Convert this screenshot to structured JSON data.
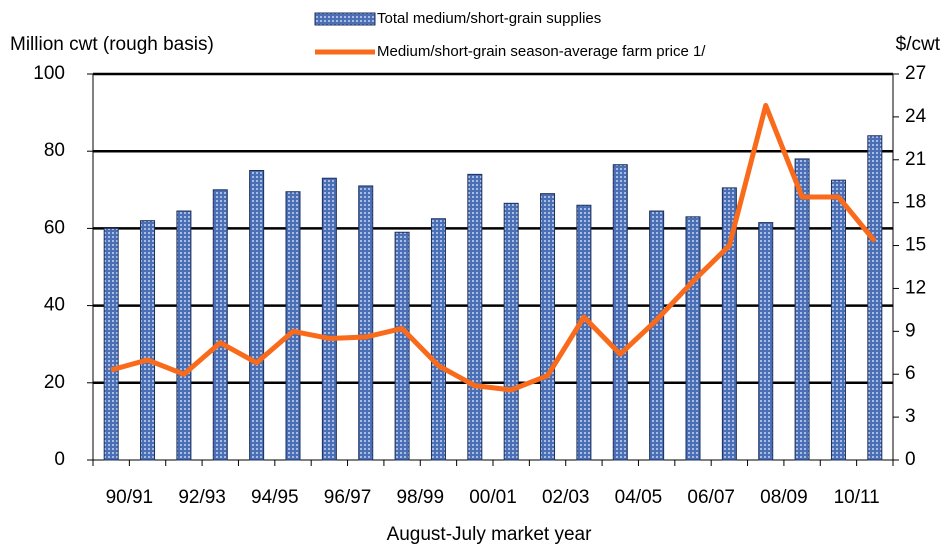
{
  "chart_data": {
    "type": "bar",
    "y_axis_label": "Million cwt (rough basis)",
    "y2_axis_label": "$/cwt",
    "x_axis_label": "August-July market year",
    "categories": [
      "90/91",
      null,
      "92/93",
      null,
      "94/95",
      null,
      "96/97",
      null,
      "98/99",
      null,
      "00/01",
      null,
      "02/03",
      null,
      "04/05",
      null,
      "06/07",
      null,
      "08/09",
      null,
      "10/11",
      null
    ],
    "series": [
      {
        "name": "Total medium/short-grain supplies",
        "type": "bar",
        "color": "#4a6fb5",
        "values": [
          60,
          62,
          64.5,
          70,
          75,
          69.5,
          73,
          71,
          59,
          62.5,
          74,
          66.5,
          69,
          66,
          76.5,
          64.5,
          63,
          70.5,
          61.5,
          78,
          72.5,
          84
        ]
      },
      {
        "name": "Medium/short-grain season-average farm price 1/",
        "type": "line",
        "axis": "y2",
        "color": "#f96a1b",
        "values": [
          6.3,
          7.0,
          6.0,
          8.2,
          6.8,
          9.0,
          8.5,
          8.6,
          9.2,
          6.6,
          5.2,
          4.9,
          5.9,
          10.0,
          7.4,
          9.8,
          12.5,
          15.0,
          24.8,
          18.4,
          18.4,
          15.3
        ]
      }
    ],
    "ylim": [
      0,
      100
    ],
    "yticks": [
      0,
      20,
      40,
      60,
      80,
      100
    ],
    "y2lim": [
      0,
      27
    ],
    "y2ticks": [
      0,
      3,
      6,
      9,
      12,
      15,
      18,
      21,
      24,
      27
    ],
    "grid": true
  }
}
